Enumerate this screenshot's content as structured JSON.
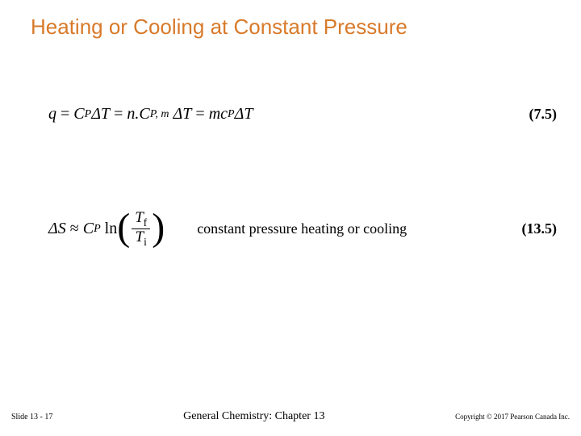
{
  "title": {
    "text": "Heating or Cooling at Constant Pressure",
    "color": "#d87a2a",
    "fontsize": 26
  },
  "equation1": {
    "q": "q",
    "eq": "=",
    "Cp": "C",
    "Cp_sub": "P",
    "dT": "ΔT",
    "n": "n.",
    "Cpm": "C",
    "Cpm_sub": "P, m",
    "m": "m",
    "cp": "c",
    "cp_sub": "P",
    "number": "(7.5)"
  },
  "equation2": {
    "dS": "ΔS",
    "approx": "≈",
    "Cp": "C",
    "Cp_sub": "P",
    "ln": "ln",
    "Tf": "T",
    "Tf_sub": "f",
    "Ti": "T",
    "Ti_sub": "i",
    "caption": "constant pressure heating or cooling",
    "number": "(13.5)"
  },
  "footer": {
    "slide": "Slide 13 - 17",
    "center": "General Chemistry: Chapter 13",
    "copyright": "Copyright © 2017 Pearson Canada Inc."
  }
}
